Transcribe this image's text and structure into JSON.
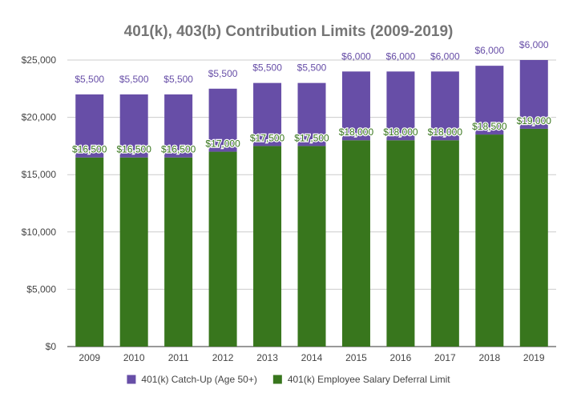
{
  "chart_data": {
    "type": "bar",
    "stacked": true,
    "title": "401(k), 403(b) Contribution Limits (2009-2019)",
    "xlabel": "",
    "ylabel": "",
    "categories": [
      "2009",
      "2010",
      "2011",
      "2012",
      "2013",
      "2014",
      "2015",
      "2016",
      "2017",
      "2018",
      "2019"
    ],
    "ylim": [
      0,
      25000
    ],
    "yticks": [
      0,
      5000,
      10000,
      15000,
      20000,
      25000
    ],
    "ytick_labels": [
      "$0",
      "$5,000",
      "$10,000",
      "$15,000",
      "$20,000",
      "$25,000"
    ],
    "grid": true,
    "legend_position": "bottom",
    "series": [
      {
        "name": "401(k) Employee Salary Deferral Limit",
        "color": "#38761d",
        "label_color": "#38761d",
        "values": [
          16500,
          16500,
          16500,
          17000,
          17500,
          17500,
          18000,
          18000,
          18000,
          18500,
          19000
        ],
        "labels": [
          "$16,500",
          "$16,500",
          "$16,500",
          "$17,000",
          "$17,500",
          "$17,500",
          "$18,000",
          "$18,000",
          "$18,000",
          "$18,500",
          "$19,000"
        ]
      },
      {
        "name": "401(k) Catch-Up (Age 50+)",
        "color": "#674ea7",
        "label_color": "#674ea7",
        "values": [
          5500,
          5500,
          5500,
          5500,
          5500,
          5500,
          6000,
          6000,
          6000,
          6000,
          6000
        ],
        "labels": [
          "$5,500",
          "$5,500",
          "$5,500",
          "$5,500",
          "$5,500",
          "$5,500",
          "$6,000",
          "$6,000",
          "$6,000",
          "$6,000",
          "$6,000"
        ]
      }
    ],
    "legend_order": [
      1,
      0
    ]
  }
}
